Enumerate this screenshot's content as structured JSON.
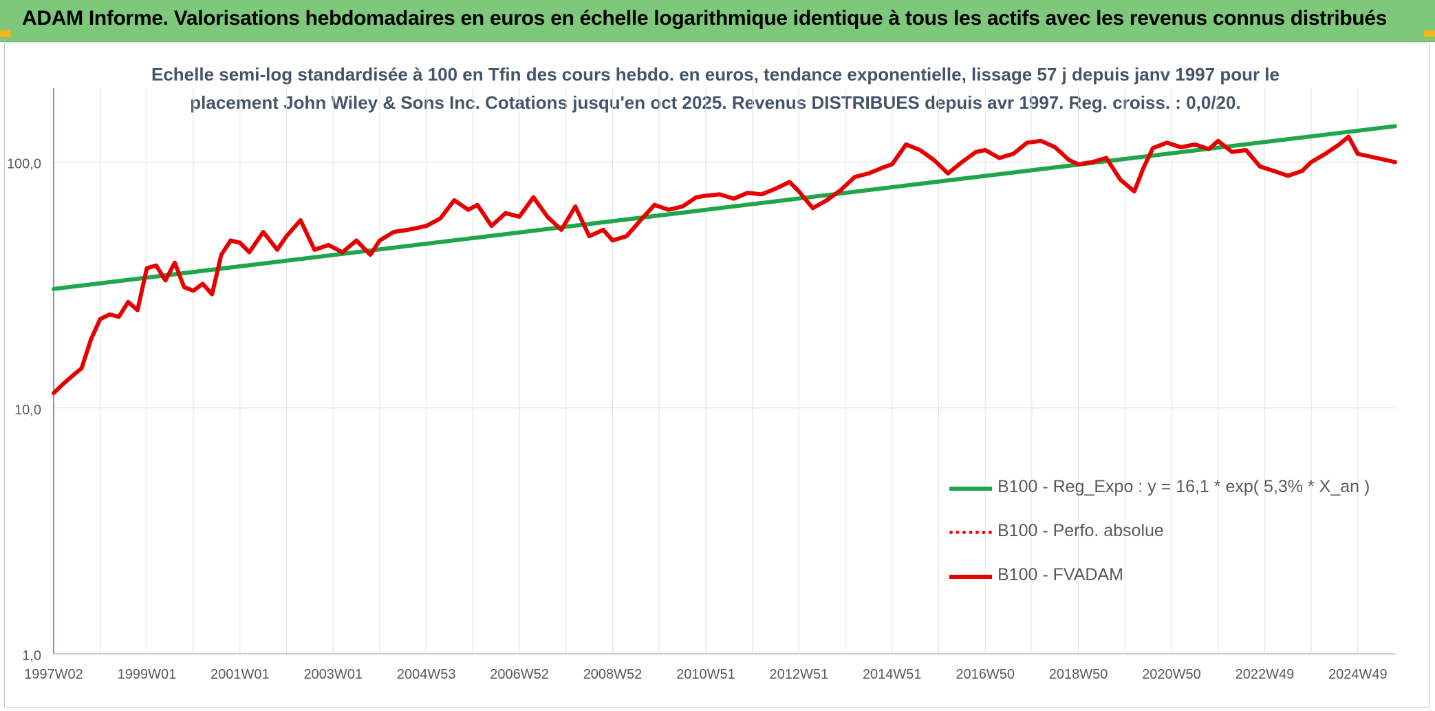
{
  "header": {
    "title": "ADAM Informe. Valorisations hebdomadaires en euros en échelle logarithmique identique à tous les actifs avec les revenus connus distribués"
  },
  "chart_data": {
    "type": "line",
    "title": "Echelle semi-log standardisée à 100 en Tfin des cours hebdo. en euros, tendance exponentielle, lissage 57 j depuis janv 1997 pour le placement John Wiley & Sons Inc. Cotations jusqu'en oct 2025. Revenus DISTRIBUES depuis avr 1997. Reg. croiss. : 0,0/20.",
    "y_scale": "log",
    "ylim": [
      1,
      200
    ],
    "y_ticks": [
      "1,0",
      "10,0",
      "100,0"
    ],
    "x_range": [
      1997.0,
      2025.8
    ],
    "x_ticks": [
      {
        "year": 1997.0,
        "label": "1997W02"
      },
      {
        "year": 1999.0,
        "label": "1999W01"
      },
      {
        "year": 2001.0,
        "label": "2001W01"
      },
      {
        "year": 2003.0,
        "label": "2003W01"
      },
      {
        "year": 2005.0,
        "label": "2004W53"
      },
      {
        "year": 2007.0,
        "label": "2006W52"
      },
      {
        "year": 2009.0,
        "label": "2008W52"
      },
      {
        "year": 2011.0,
        "label": "2010W51"
      },
      {
        "year": 2013.0,
        "label": "2012W51"
      },
      {
        "year": 2015.0,
        "label": "2014W51"
      },
      {
        "year": 2017.0,
        "label": "2016W50"
      },
      {
        "year": 2019.0,
        "label": "2018W50"
      },
      {
        "year": 2021.0,
        "label": "2020W50"
      },
      {
        "year": 2023.0,
        "label": "2022W49"
      },
      {
        "year": 2025.0,
        "label": "2024W49"
      }
    ],
    "grid": true,
    "legend_position": "bottom-right",
    "series": [
      {
        "name": "B100 - Reg_Expo : y = 16,1 * exp( 5,3% *  X_an )",
        "color": "#1fa64a",
        "style": "solid",
        "x": [
          1997.0,
          2025.8
        ],
        "y": [
          30.5,
          140
        ]
      },
      {
        "name": "B100 - Perfo. absolue",
        "color": "#ff0000",
        "style": "dotted",
        "x": [],
        "y": []
      },
      {
        "name": "B100 - FVADAM",
        "color": "#e60000",
        "style": "solid",
        "x": [
          1997.0,
          1997.2,
          1997.4,
          1997.6,
          1997.8,
          1998.0,
          1998.2,
          1998.4,
          1998.6,
          1998.8,
          1999.0,
          1999.2,
          1999.4,
          1999.6,
          1999.8,
          2000.0,
          2000.2,
          2000.4,
          2000.6,
          2000.8,
          2001.0,
          2001.2,
          2001.5,
          2001.8,
          2002.0,
          2002.3,
          2002.6,
          2002.9,
          2003.2,
          2003.5,
          2003.8,
          2004.0,
          2004.3,
          2004.6,
          2005.0,
          2005.3,
          2005.6,
          2005.9,
          2006.1,
          2006.4,
          2006.7,
          2007.0,
          2007.3,
          2007.6,
          2007.9,
          2008.2,
          2008.5,
          2008.8,
          2009.0,
          2009.3,
          2009.6,
          2009.9,
          2010.2,
          2010.5,
          2010.8,
          2011.0,
          2011.3,
          2011.6,
          2011.9,
          2012.2,
          2012.5,
          2012.8,
          2013.0,
          2013.3,
          2013.6,
          2013.9,
          2014.2,
          2014.5,
          2014.8,
          2015.0,
          2015.3,
          2015.6,
          2015.9,
          2016.2,
          2016.5,
          2016.8,
          2017.0,
          2017.3,
          2017.6,
          2017.9,
          2018.2,
          2018.5,
          2018.8,
          2019.0,
          2019.3,
          2019.6,
          2019.9,
          2020.2,
          2020.4,
          2020.6,
          2020.9,
          2021.2,
          2021.5,
          2021.8,
          2022.0,
          2022.3,
          2022.6,
          2022.9,
          2023.2,
          2023.5,
          2023.8,
          2024.0,
          2024.3,
          2024.6,
          2024.8,
          2025.0,
          2025.2,
          2025.5,
          2025.8
        ],
        "y": [
          11.5,
          12.5,
          13.5,
          14.5,
          19,
          23,
          24,
          23.5,
          27,
          25,
          37,
          38,
          33,
          39,
          31,
          30,
          32,
          29,
          42,
          48,
          47,
          43,
          52,
          44,
          50,
          58,
          44,
          46,
          43,
          48,
          42,
          48,
          52,
          53,
          55,
          59,
          70,
          64,
          67,
          55,
          62,
          60,
          72,
          60,
          53,
          66,
          50,
          53,
          48,
          50,
          58,
          67,
          64,
          66,
          72,
          73,
          74,
          71,
          75,
          74,
          78,
          83,
          76,
          65,
          70,
          77,
          87,
          90,
          95,
          98,
          118,
          112,
          102,
          90,
          100,
          110,
          112,
          104,
          108,
          120,
          122,
          115,
          102,
          98,
          100,
          104,
          85,
          76,
          95,
          114,
          120,
          115,
          118,
          113,
          122,
          110,
          112,
          96,
          92,
          88,
          92,
          100,
          108,
          118,
          127,
          108,
          106,
          103,
          100
        ]
      }
    ]
  }
}
